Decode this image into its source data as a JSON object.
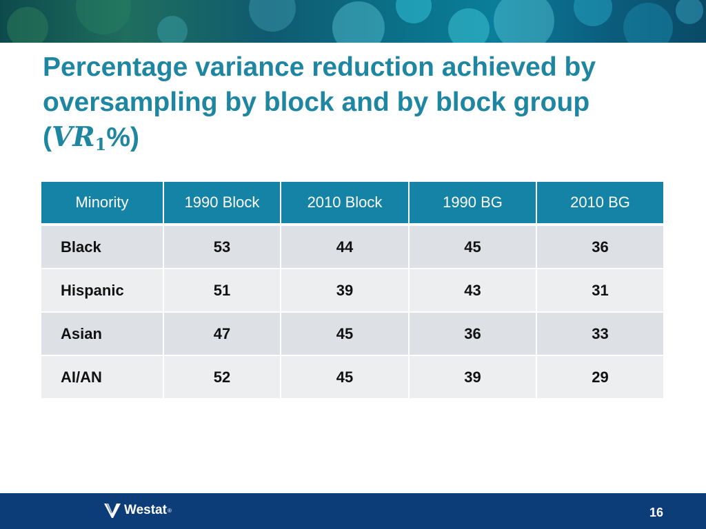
{
  "slide": {
    "title_text": "Percentage variance reduction achieved by oversampling by block and by block group",
    "title_paren_open": "(",
    "title_math": "VR",
    "title_math_sub": "1",
    "title_suffix": "%)",
    "colors": {
      "title": "#1f86a2",
      "header_bg": "#1583a6",
      "row_dark": "#dde1e5",
      "row_light": "#eceef0",
      "footer_bg": "#0d3d78"
    }
  },
  "table": {
    "headers": [
      "Minority",
      "1990 Block",
      "2010 Block",
      "1990 BG",
      "2010 BG"
    ],
    "rows": [
      {
        "label": "Black",
        "values": [
          "53",
          "44",
          "45",
          "36"
        ]
      },
      {
        "label": "Hispanic",
        "values": [
          "51",
          "39",
          "43",
          "31"
        ]
      },
      {
        "label": "Asian",
        "values": [
          "47",
          "45",
          "36",
          "33"
        ]
      },
      {
        "label": "AI/AN",
        "values": [
          "52",
          "45",
          "39",
          "29"
        ]
      }
    ]
  },
  "footer": {
    "logo_icon": "westat-check-logo-icon",
    "logo_text": "Westat",
    "logo_mark": "®",
    "page_number": "16"
  }
}
